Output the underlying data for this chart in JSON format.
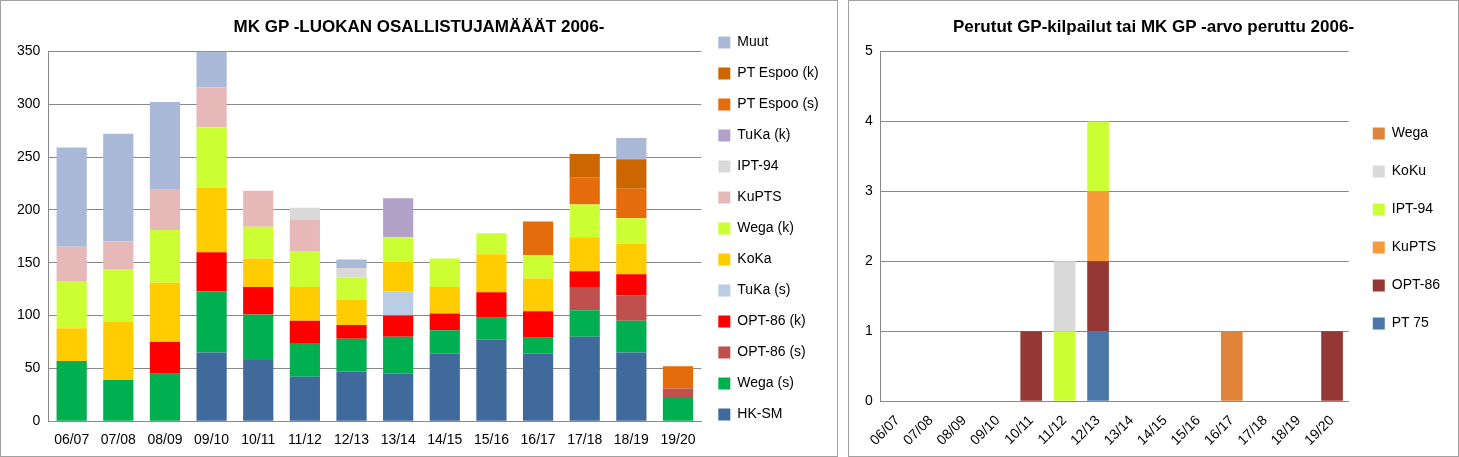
{
  "chart_data": [
    {
      "type": "bar",
      "title": "MK GP -LUOKAN OSALLISTUJAMÄÄÄT 2006-",
      "categories": [
        "06/07",
        "07/08",
        "08/09",
        "09/10",
        "10/11",
        "11/12",
        "12/13",
        "13/14",
        "14/15",
        "15/16",
        "16/17",
        "17/18",
        "18/19",
        "19/20"
      ],
      "stacked": true,
      "ylim": [
        0,
        350
      ],
      "yticks": [
        0,
        50,
        100,
        150,
        200,
        250,
        300,
        350
      ],
      "grid": "y",
      "legend": "right",
      "series": [
        {
          "name": "HK-SM",
          "color": "#416a9c",
          "values": [
            null,
            null,
            null,
            65,
            58,
            42,
            47,
            45,
            64,
            77,
            64,
            80,
            65,
            null
          ]
        },
        {
          "name": "Wega (s)",
          "color": "#00b050",
          "values": [
            57,
            39,
            45,
            58,
            43,
            32,
            31,
            35,
            22,
            21,
            15,
            25,
            30,
            22
          ]
        },
        {
          "name": "OPT-86 (s)",
          "color": "#c0504d",
          "values": [
            null,
            null,
            null,
            null,
            null,
            null,
            null,
            null,
            null,
            null,
            null,
            22,
            24,
            9
          ]
        },
        {
          "name": "OPT-86 (k)",
          "color": "#ff0000",
          "values": [
            null,
            null,
            30,
            37,
            26,
            21,
            13,
            20,
            16,
            24,
            25,
            15,
            20,
            null
          ]
        },
        {
          "name": "TuKa (s)",
          "color": "#b9cde5",
          "values": [
            null,
            null,
            null,
            null,
            null,
            null,
            null,
            23,
            null,
            null,
            null,
            null,
            null,
            null
          ]
        },
        {
          "name": "KoKa",
          "color": "#ffcc00",
          "values": [
            31,
            55,
            56,
            61,
            27,
            32,
            24,
            28,
            25,
            36,
            31,
            32,
            29,
            null
          ]
        },
        {
          "name": "Wega (k)",
          "color": "#ccff33",
          "values": [
            44,
            50,
            50,
            57,
            30,
            34,
            21,
            23,
            27,
            20,
            22,
            31,
            24,
            null
          ]
        },
        {
          "name": "KuPTS",
          "color": "#e6b9b8",
          "values": [
            33,
            26,
            38,
            38,
            34,
            30,
            null,
            null,
            null,
            null,
            null,
            null,
            null,
            null
          ]
        },
        {
          "name": "IPT-94",
          "color": "#d9d9d9",
          "values": [
            null,
            null,
            null,
            null,
            null,
            11,
            9,
            null,
            null,
            null,
            null,
            null,
            null,
            null
          ]
        },
        {
          "name": "TuKa (k)",
          "color": "#b3a2c7",
          "values": [
            null,
            null,
            null,
            null,
            null,
            null,
            null,
            37,
            null,
            null,
            null,
            null,
            null,
            null
          ]
        },
        {
          "name": "PT Espoo (s)",
          "color": "#e46c0a",
          "values": [
            null,
            null,
            null,
            null,
            null,
            null,
            null,
            null,
            null,
            null,
            32,
            26,
            28,
            21
          ]
        },
        {
          "name": "PT Espoo (k)",
          "color": "#cc6600",
          "values": [
            null,
            null,
            null,
            null,
            null,
            null,
            null,
            null,
            null,
            null,
            null,
            22,
            28,
            null
          ]
        },
        {
          "name": "Muut",
          "color": "#aab9d7",
          "values": [
            94,
            102,
            83,
            34,
            null,
            null,
            8,
            null,
            null,
            null,
            null,
            null,
            20,
            null
          ]
        }
      ]
    },
    {
      "type": "bar",
      "title": "Perutut GP-kilpailut tai MK GP -arvo peruttu 2006-",
      "categories": [
        "06/07",
        "07/08",
        "08/09",
        "09/10",
        "10/11",
        "11/12",
        "12/13",
        "13/14",
        "14/15",
        "15/16",
        "16/17",
        "17/18",
        "18/19",
        "19/20"
      ],
      "stacked": true,
      "ylim": [
        0,
        5
      ],
      "yticks": [
        0,
        1,
        2,
        3,
        4,
        5
      ],
      "grid": "y",
      "legend": "right",
      "series": [
        {
          "name": "PT 75",
          "color": "#4a76a8",
          "values": [
            null,
            null,
            null,
            null,
            null,
            null,
            1,
            null,
            null,
            null,
            null,
            null,
            null,
            null
          ]
        },
        {
          "name": "OPT-86",
          "color": "#953735",
          "values": [
            null,
            null,
            null,
            null,
            1,
            null,
            1,
            null,
            null,
            null,
            null,
            null,
            null,
            1
          ]
        },
        {
          "name": "KuPTS",
          "color": "#f79a3a",
          "values": [
            null,
            null,
            null,
            null,
            null,
            null,
            1,
            null,
            null,
            null,
            null,
            null,
            null,
            null
          ]
        },
        {
          "name": "IPT-94",
          "color": "#ccff33",
          "values": [
            null,
            null,
            null,
            null,
            null,
            1,
            1,
            null,
            null,
            null,
            null,
            null,
            null,
            null
          ]
        },
        {
          "name": "KoKu",
          "color": "#d9d9d9",
          "values": [
            null,
            null,
            null,
            null,
            null,
            1,
            null,
            null,
            null,
            null,
            null,
            null,
            null,
            null
          ]
        },
        {
          "name": "Wega",
          "color": "#e0843c",
          "values": [
            null,
            null,
            null,
            null,
            null,
            null,
            null,
            null,
            null,
            null,
            1,
            null,
            null,
            null
          ]
        }
      ]
    }
  ]
}
